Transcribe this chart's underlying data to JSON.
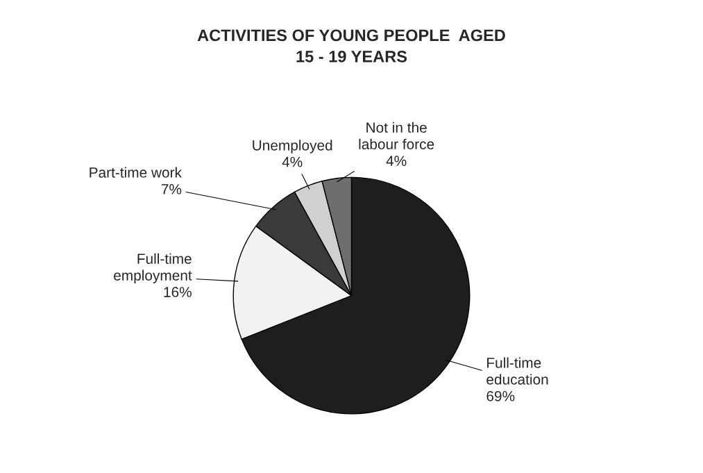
{
  "chart_data": {
    "type": "pie",
    "title": "ACTIVITIES OF YOUNG PEOPLE  AGED\n15 - 19 YEARS",
    "categories": [
      "Full-time\neducation",
      "Full-time\nemployment",
      "Part-time work",
      "Unemployed",
      "Not in the\nlabour force"
    ],
    "values": [
      69,
      16,
      7,
      4,
      4
    ],
    "value_labels": [
      "69%",
      "16%",
      "7%",
      "4%",
      "4%"
    ],
    "colors": [
      "#1e1e1e",
      "#f2f2f2",
      "#3a3a3a",
      "#d0d0d0",
      "#6e6e6e"
    ],
    "legend": false
  }
}
